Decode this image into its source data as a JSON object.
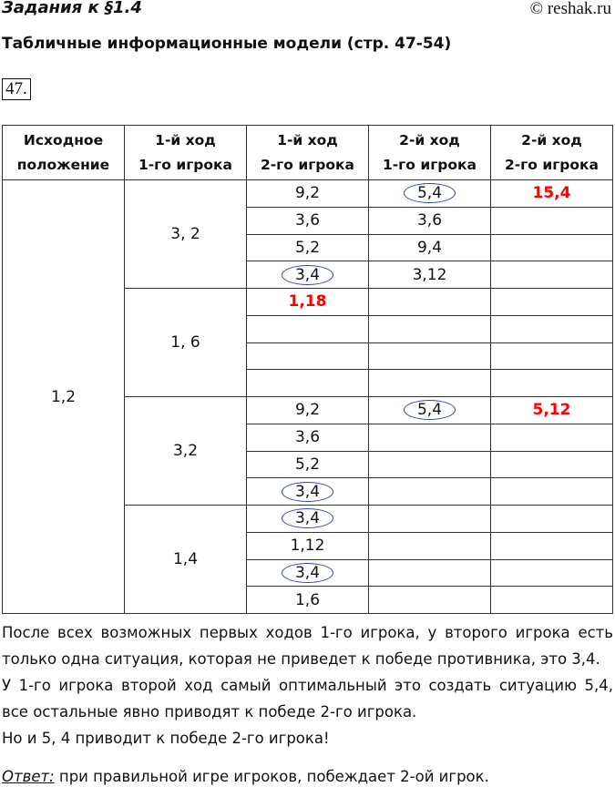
{
  "header": {
    "section": "Задания к §1.4",
    "copyright": "© reshak.ru"
  },
  "subtitle": "Табличные информационные модели (стр. 47-54)",
  "task_number": "47.",
  "table": {
    "headers": [
      [
        "Исходное",
        "положение"
      ],
      [
        "1-й ход",
        "1-го игрока"
      ],
      [
        "1-й ход",
        "2-го игрока"
      ],
      [
        "2-й ход",
        "1-го игрока"
      ],
      [
        "2-й ход",
        "2-го игрока"
      ]
    ],
    "initial": "1,2",
    "groups": [
      "3, 2",
      "1, 6",
      "3,2",
      "1,4"
    ],
    "rows": [
      [
        {
          "t": "9,2"
        },
        {
          "t": "5,4",
          "c": true
        },
        {
          "t": "15,4",
          "r": true
        }
      ],
      [
        {
          "t": "3,6"
        },
        {
          "t": "3,6"
        },
        {
          "t": ""
        }
      ],
      [
        {
          "t": "5,2"
        },
        {
          "t": "9,4"
        },
        {
          "t": ""
        }
      ],
      [
        {
          "t": "3,4",
          "c": true
        },
        {
          "t": "3,12"
        },
        {
          "t": ""
        }
      ],
      [
        {
          "t": "1,18",
          "r": true
        },
        {
          "t": ""
        },
        {
          "t": ""
        }
      ],
      [
        {
          "t": ""
        },
        {
          "t": ""
        },
        {
          "t": ""
        }
      ],
      [
        {
          "t": ""
        },
        {
          "t": ""
        },
        {
          "t": ""
        }
      ],
      [
        {
          "t": ""
        },
        {
          "t": ""
        },
        {
          "t": ""
        }
      ],
      [
        {
          "t": "9,2"
        },
        {
          "t": "5,4",
          "c": true
        },
        {
          "t": "5,12",
          "r": true
        }
      ],
      [
        {
          "t": "3,6"
        },
        {
          "t": ""
        },
        {
          "t": ""
        }
      ],
      [
        {
          "t": "5,2"
        },
        {
          "t": ""
        },
        {
          "t": ""
        }
      ],
      [
        {
          "t": "3,4",
          "c": true
        },
        {
          "t": ""
        },
        {
          "t": ""
        }
      ],
      [
        {
          "t": "3,4",
          "c": true
        },
        {
          "t": ""
        },
        {
          "t": ""
        }
      ],
      [
        {
          "t": "1,12"
        },
        {
          "t": ""
        },
        {
          "t": ""
        }
      ],
      [
        {
          "t": "3,4",
          "c": true
        },
        {
          "t": ""
        },
        {
          "t": ""
        }
      ],
      [
        {
          "t": "1,6"
        },
        {
          "t": ""
        },
        {
          "t": ""
        }
      ]
    ],
    "highlight_color": "#ff0000",
    "circle_color": "#2c4b8e"
  },
  "paragraphs": [
    "После всех возможных первых ходов 1-го игрока, у второго игрока есть только одна ситуация, которая не приведет к победе противника, это 3,4.",
    "У 1-го игрока второй ход самый оптимальный это создать ситуацию 5,4, все остальные явно приводят к победе 2-го игрока.",
    "Но и 5, 4 приводит к победе 2-го игрока!"
  ],
  "answer": {
    "label": "Ответ:",
    "text": " при правильной игре игроков, побеждает 2-ой игрок."
  }
}
